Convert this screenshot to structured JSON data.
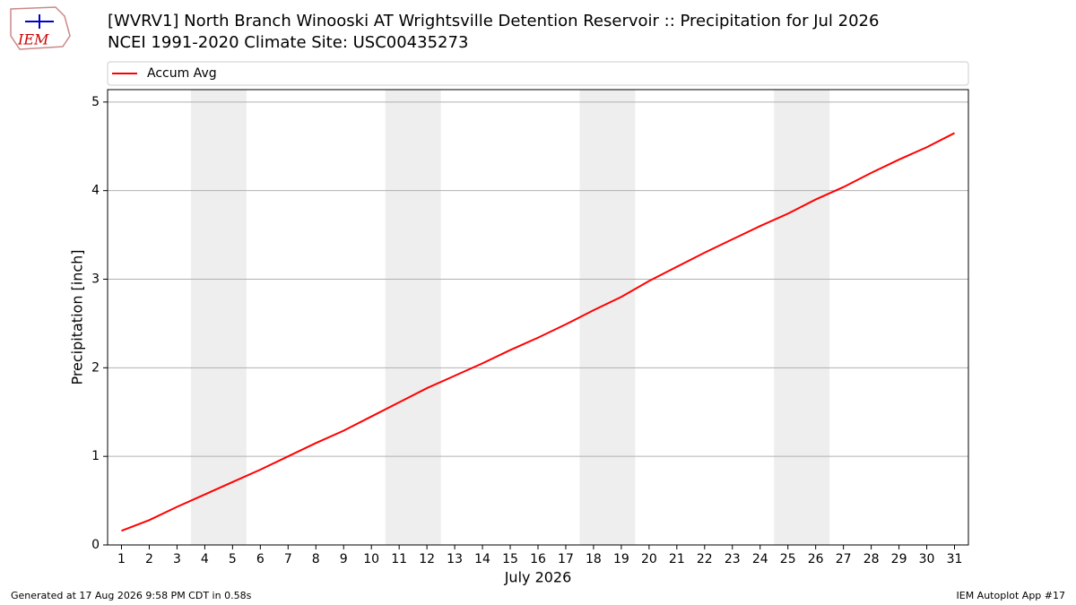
{
  "logo_text": "IEM",
  "footer": {
    "left": "Generated at 17 Aug 2026 9:58 PM CDT in 0.58s",
    "right": "IEM Autoplot App #17"
  },
  "chart_data": {
    "type": "line",
    "title": "[WVRV1] North Branch Winooski  AT Wrightsville Detention Reservoir :: Precipitation for Jul 2026",
    "subtitle": "NCEI 1991-2020 Climate Site: USC00435273",
    "xlabel": "July 2026",
    "ylabel": "Precipitation [inch]",
    "x": [
      1,
      2,
      3,
      4,
      5,
      6,
      7,
      8,
      9,
      10,
      11,
      12,
      13,
      14,
      15,
      16,
      17,
      18,
      19,
      20,
      21,
      22,
      23,
      24,
      25,
      26,
      27,
      28,
      29,
      30,
      31
    ],
    "series": [
      {
        "name": "Accum Avg",
        "color": "#ff0000",
        "values": [
          0.16,
          0.28,
          0.43,
          0.57,
          0.71,
          0.85,
          1.0,
          1.15,
          1.29,
          1.45,
          1.61,
          1.77,
          1.91,
          2.05,
          2.2,
          2.34,
          2.49,
          2.65,
          2.8,
          2.98,
          3.14,
          3.3,
          3.45,
          3.6,
          3.74,
          3.9,
          4.04,
          4.2,
          4.35,
          4.49,
          4.65
        ]
      }
    ],
    "shaded_spans": [
      [
        3.5,
        5.5
      ],
      [
        10.5,
        12.5
      ],
      [
        17.5,
        19.5
      ],
      [
        24.5,
        26.5
      ]
    ],
    "shade_color": "#eeeeee",
    "xlim": [
      0.5,
      31.5
    ],
    "ylim": [
      0,
      5.14
    ],
    "xticks": [
      1,
      2,
      3,
      4,
      5,
      6,
      7,
      8,
      9,
      10,
      11,
      12,
      13,
      14,
      15,
      16,
      17,
      18,
      19,
      20,
      21,
      22,
      23,
      24,
      25,
      26,
      27,
      28,
      29,
      30,
      31
    ],
    "yticks": [
      0,
      1,
      2,
      3,
      4,
      5
    ],
    "grid": true
  }
}
